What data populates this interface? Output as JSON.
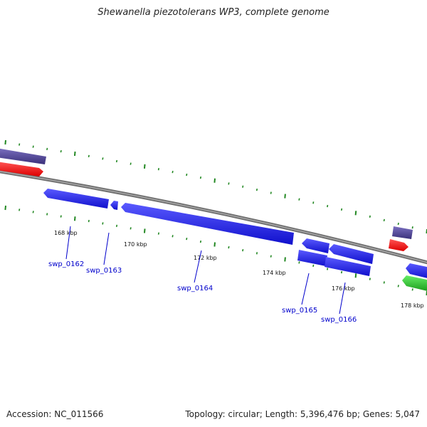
{
  "title": "Shewanella piezotolerans WP3, complete genome",
  "footer": {
    "accession": "Accession: NC_011566",
    "summary": "Topology: circular; Length: 5,396,476 bp; Genes: 5,047"
  },
  "colors": {
    "background": "#ffffff",
    "backbone": "#7a7a7a",
    "cds_forward_outer": "#4a3f8c",
    "rna_forward": "#ee1111",
    "cds_reverse": "#1a1aee",
    "cds_reverse_alt": "#22bb22",
    "tick": "#228822",
    "label": "#0000cc"
  },
  "ticks": [
    "168 kbp",
    "170 kbp",
    "172 kbp",
    "174 kbp",
    "176 kbp",
    "178 kbp"
  ],
  "genes": [
    {
      "name": "swp_0162"
    },
    {
      "name": "swp_0163"
    },
    {
      "name": "swp_0164"
    },
    {
      "name": "swp_0165"
    },
    {
      "name": "swp_0166"
    }
  ]
}
